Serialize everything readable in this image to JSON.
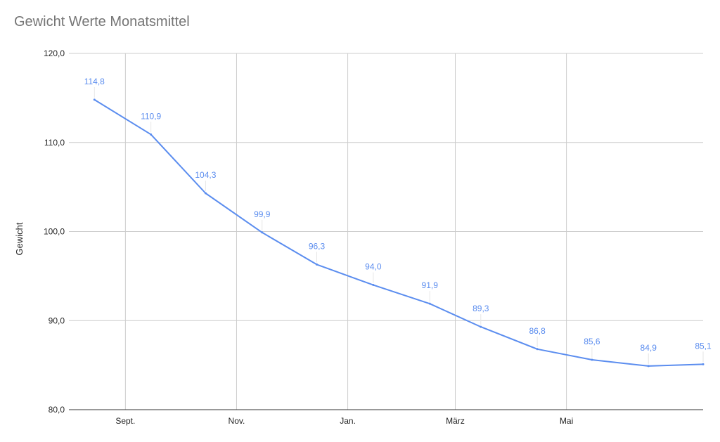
{
  "colors": {
    "line": "#5b8def",
    "grid": "#cccccc",
    "text": "#222222",
    "title": "#757575"
  },
  "chart_data": {
    "type": "line",
    "title": "Gewicht Werte Monatsmittel",
    "xlabel": "",
    "ylabel": "Gewicht",
    "ylim": [
      80,
      120
    ],
    "yticks": [
      "120,0",
      "110,0",
      "100,0",
      "90,0",
      "80,0"
    ],
    "xticks": [
      "Sept.",
      "Nov.",
      "Jan.",
      "März",
      "Mai"
    ],
    "x": [
      "2020-08-15",
      "2020-09-15",
      "2020-10-15",
      "2020-11-15",
      "2020-12-15",
      "2021-01-15",
      "2021-02-15",
      "2021-03-15",
      "2021-04-15",
      "2021-05-15",
      "2021-06-15",
      "2021-07-15"
    ],
    "series": [
      {
        "values": [
          114.8,
          110.9,
          104.3,
          99.9,
          96.3,
          94.0,
          91.9,
          89.3,
          86.8,
          85.6,
          84.9,
          85.1
        ],
        "labels": [
          "114,8",
          "110,9",
          "104,3",
          "99,9",
          "96,3",
          "94,0",
          "91,9",
          "89,3",
          "86,8",
          "85,6",
          "84,9",
          "85,1"
        ]
      }
    ],
    "grid": true,
    "legend": "none"
  }
}
